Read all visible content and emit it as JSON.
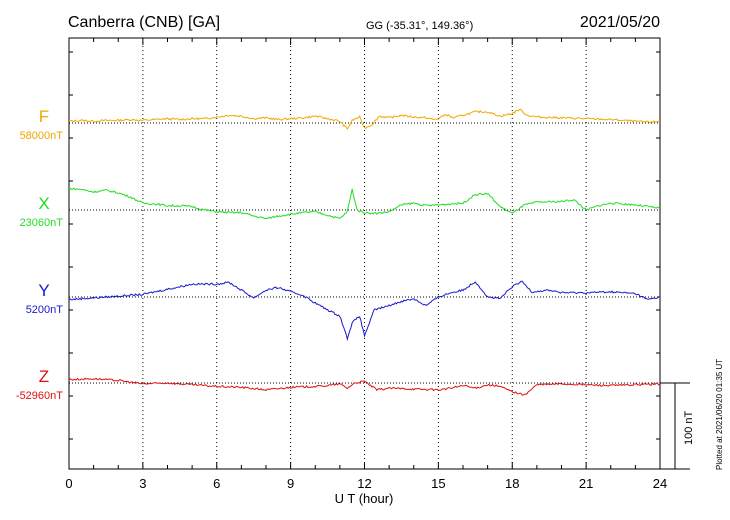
{
  "header": {
    "station": "Canberra (CNB)  [GA]",
    "coords": "GG (-35.31°, 149.36°)",
    "date": "2021/05/20"
  },
  "footer": {
    "plotted": "Plotted at 2021/06/20 01:35 UT"
  },
  "chart_data": {
    "type": "line",
    "title": "Canberra (CNB)  [GA]",
    "xlabel": "U T (hour)",
    "xlim": [
      0,
      24
    ],
    "x_ticks": [
      0,
      3,
      6,
      9,
      12,
      15,
      18,
      21,
      24
    ],
    "x_tick_labels": [
      "0",
      "3",
      "6",
      "9",
      "12",
      "15",
      "18",
      "21",
      "24"
    ],
    "grid": true,
    "scale_bar": {
      "label": "100 nT",
      "nT": 100
    },
    "series": [
      {
        "name": "F",
        "baseline_label": "58000nT",
        "color": "#f0a800",
        "points": [
          [
            0,
            2
          ],
          [
            0.5,
            3
          ],
          [
            1,
            2
          ],
          [
            1.5,
            3
          ],
          [
            2,
            3
          ],
          [
            2.5,
            4
          ],
          [
            3,
            3
          ],
          [
            3.5,
            4
          ],
          [
            4,
            5
          ],
          [
            4.5,
            4
          ],
          [
            5,
            5
          ],
          [
            5.5,
            5
          ],
          [
            6,
            7
          ],
          [
            6.5,
            9
          ],
          [
            7,
            8
          ],
          [
            7.5,
            5
          ],
          [
            8,
            6
          ],
          [
            8.5,
            4
          ],
          [
            9,
            5
          ],
          [
            9.5,
            6
          ],
          [
            10,
            8
          ],
          [
            10.5,
            5
          ],
          [
            11,
            2
          ],
          [
            11.3,
            -7
          ],
          [
            11.5,
            3
          ],
          [
            11.8,
            7
          ],
          [
            12,
            -6
          ],
          [
            12.3,
            -2
          ],
          [
            12.6,
            8
          ],
          [
            13,
            6
          ],
          [
            13.5,
            9
          ],
          [
            14,
            7
          ],
          [
            14.5,
            6
          ],
          [
            14.8,
            4
          ],
          [
            15,
            5
          ],
          [
            15.3,
            10
          ],
          [
            15.6,
            6
          ],
          [
            16,
            9
          ],
          [
            16.5,
            13
          ],
          [
            17,
            13
          ],
          [
            17.5,
            8
          ],
          [
            18,
            11
          ],
          [
            18.3,
            16
          ],
          [
            18.6,
            9
          ],
          [
            19,
            7
          ],
          [
            20,
            6
          ],
          [
            21,
            5
          ],
          [
            22,
            4
          ],
          [
            23,
            2
          ],
          [
            23.5,
            1
          ],
          [
            24,
            2
          ]
        ]
      },
      {
        "name": "X",
        "baseline_label": "23060nT",
        "color": "#22dd22",
        "points": [
          [
            0,
            25
          ],
          [
            0.5,
            24
          ],
          [
            1,
            21
          ],
          [
            1.5,
            23
          ],
          [
            2,
            20
          ],
          [
            2.5,
            15
          ],
          [
            3,
            8
          ],
          [
            3.5,
            7
          ],
          [
            4,
            5
          ],
          [
            4.5,
            5
          ],
          [
            5,
            4
          ],
          [
            5.5,
            0
          ],
          [
            6,
            -2
          ],
          [
            6.5,
            -3
          ],
          [
            7,
            -3
          ],
          [
            7.5,
            -7
          ],
          [
            8,
            -10
          ],
          [
            8.5,
            -7
          ],
          [
            9,
            -5
          ],
          [
            9.5,
            -3
          ],
          [
            10,
            -2
          ],
          [
            10.5,
            -6
          ],
          [
            11,
            -10
          ],
          [
            11.3,
            -2
          ],
          [
            11.5,
            24
          ],
          [
            11.7,
            0
          ],
          [
            12,
            -3
          ],
          [
            12.5,
            -4
          ],
          [
            13,
            -2
          ],
          [
            13.5,
            6
          ],
          [
            14,
            8
          ],
          [
            14.5,
            5
          ],
          [
            15,
            6
          ],
          [
            15.5,
            7
          ],
          [
            16,
            8
          ],
          [
            16.5,
            18
          ],
          [
            17,
            19
          ],
          [
            17.5,
            4
          ],
          [
            18,
            -4
          ],
          [
            18.5,
            6
          ],
          [
            19,
            9
          ],
          [
            20,
            10
          ],
          [
            20.5,
            12
          ],
          [
            21,
            0
          ],
          [
            21.5,
            5
          ],
          [
            22,
            8
          ],
          [
            23,
            6
          ],
          [
            24,
            2
          ]
        ]
      },
      {
        "name": "Y",
        "baseline_label": "5200nT",
        "color": "#1a1acc",
        "points": [
          [
            0,
            -3
          ],
          [
            1,
            -1
          ],
          [
            2,
            1
          ],
          [
            3,
            3
          ],
          [
            4,
            9
          ],
          [
            5,
            15
          ],
          [
            6,
            15
          ],
          [
            6.5,
            17
          ],
          [
            7,
            8
          ],
          [
            7.5,
            -1
          ],
          [
            8,
            8
          ],
          [
            8.5,
            11
          ],
          [
            9,
            6
          ],
          [
            9.5,
            2
          ],
          [
            10,
            -7
          ],
          [
            10.5,
            -15
          ],
          [
            11,
            -22
          ],
          [
            11.3,
            -48
          ],
          [
            11.5,
            -30
          ],
          [
            11.8,
            -22
          ],
          [
            12,
            -45
          ],
          [
            12.4,
            -15
          ],
          [
            13,
            -10
          ],
          [
            13.5,
            -5
          ],
          [
            14,
            -2
          ],
          [
            14.5,
            -10
          ],
          [
            15,
            0
          ],
          [
            15.5,
            5
          ],
          [
            16,
            8
          ],
          [
            16.5,
            18
          ],
          [
            17,
            0
          ],
          [
            17.5,
            -2
          ],
          [
            18,
            12
          ],
          [
            18.4,
            18
          ],
          [
            18.8,
            6
          ],
          [
            19.5,
            8
          ],
          [
            20,
            5
          ],
          [
            21,
            5
          ],
          [
            22,
            6
          ],
          [
            23,
            4
          ],
          [
            23.5,
            -3
          ],
          [
            24,
            0
          ]
        ]
      },
      {
        "name": "Z",
        "baseline_label": "-52960nT",
        "color": "#dd1111",
        "points": [
          [
            0,
            4
          ],
          [
            1,
            5
          ],
          [
            2,
            3
          ],
          [
            3,
            -1
          ],
          [
            4,
            0
          ],
          [
            5,
            -2
          ],
          [
            6,
            -4
          ],
          [
            7,
            -5
          ],
          [
            8,
            -8
          ],
          [
            9,
            -5
          ],
          [
            10,
            -4
          ],
          [
            10.5,
            -3
          ],
          [
            11,
            -1
          ],
          [
            11.3,
            -6
          ],
          [
            11.6,
            0
          ],
          [
            12,
            2
          ],
          [
            12.5,
            -8
          ],
          [
            13,
            -6
          ],
          [
            14,
            -7
          ],
          [
            15,
            -8
          ],
          [
            15.5,
            -6
          ],
          [
            16,
            -3
          ],
          [
            16.5,
            -6
          ],
          [
            17,
            -2
          ],
          [
            17.5,
            -4
          ],
          [
            18,
            -10
          ],
          [
            18.5,
            -14
          ],
          [
            19,
            -2
          ],
          [
            20,
            -1
          ],
          [
            21,
            -2
          ],
          [
            22,
            -3
          ],
          [
            23,
            -2
          ],
          [
            24,
            -1
          ]
        ]
      }
    ]
  }
}
